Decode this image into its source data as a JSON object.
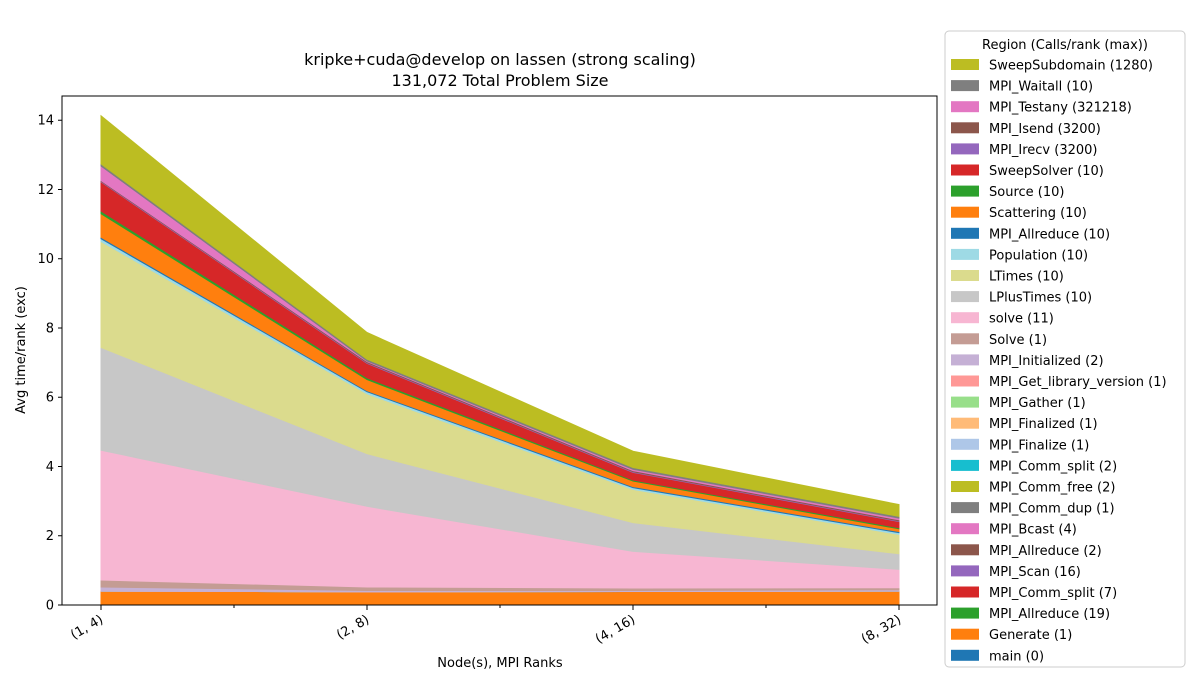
{
  "chart_data": {
    "type": "area",
    "stacked": true,
    "title": "kripke+cuda@develop on lassen (strong scaling)",
    "subtitle": "131,072 Total Problem Size",
    "xlabel": "Node(s), MPI Ranks",
    "ylabel": "Avg time/rank (exc)",
    "categories": [
      "(1, 4)",
      "(2, 8)",
      "(4, 16)",
      "(8, 32)"
    ],
    "ylim": [
      0,
      14.7
    ],
    "yticks": [
      0,
      2,
      4,
      6,
      8,
      10,
      12,
      14
    ],
    "grid": false,
    "legend_position": "outside-right",
    "legend_title": "Region (Calls/rank (max))",
    "series": [
      {
        "name": "main (0)",
        "color": "#1f77b4",
        "values": [
          0.02,
          0.02,
          0.02,
          0.02
        ]
      },
      {
        "name": "Generate (1)",
        "color": "#ff7f0e",
        "values": [
          0.38,
          0.36,
          0.37,
          0.38
        ]
      },
      {
        "name": "MPI_Allreduce (19)",
        "color": "#2ca02c",
        "values": [
          0.0,
          0.0,
          0.0,
          0.0
        ]
      },
      {
        "name": "MPI_Comm_split (7)",
        "color": "#d62728",
        "values": [
          0.0,
          0.0,
          0.0,
          0.0
        ]
      },
      {
        "name": "MPI_Scan (16)",
        "color": "#9467bd",
        "values": [
          0.0,
          0.0,
          0.0,
          0.0
        ]
      },
      {
        "name": "MPI_Allreduce (2)",
        "color": "#8c564b",
        "values": [
          0.0,
          0.0,
          0.0,
          0.0
        ]
      },
      {
        "name": "MPI_Bcast (4)",
        "color": "#e377c2",
        "values": [
          0.0,
          0.0,
          0.0,
          0.0
        ]
      },
      {
        "name": "MPI_Comm_dup (1)",
        "color": "#7f7f7f",
        "values": [
          0.0,
          0.0,
          0.0,
          0.0
        ]
      },
      {
        "name": "MPI_Comm_free (2)",
        "color": "#bcbd22",
        "values": [
          0.0,
          0.0,
          0.0,
          0.0
        ]
      },
      {
        "name": "MPI_Comm_split (2)",
        "color": "#17becf",
        "values": [
          0.0,
          0.0,
          0.0,
          0.0
        ]
      },
      {
        "name": "MPI_Finalize (1)",
        "color": "#aec7e8",
        "values": [
          0.0,
          0.0,
          0.0,
          0.0
        ]
      },
      {
        "name": "MPI_Finalized (1)",
        "color": "#ffbb78",
        "values": [
          0.0,
          0.0,
          0.0,
          0.0
        ]
      },
      {
        "name": "MPI_Gather (1)",
        "color": "#98df8a",
        "values": [
          0.0,
          0.0,
          0.0,
          0.0
        ]
      },
      {
        "name": "MPI_Get_library_version (1)",
        "color": "#ff9896",
        "values": [
          0.0,
          0.0,
          0.0,
          0.0
        ]
      },
      {
        "name": "MPI_Initialized (2)",
        "color": "#c5b0d5",
        "values": [
          0.12,
          0.04,
          0.03,
          0.04
        ]
      },
      {
        "name": "Solve (1)",
        "color": "#c49c94",
        "values": [
          0.2,
          0.1,
          0.07,
          0.06
        ]
      },
      {
        "name": "solve (11)",
        "color": "#f7b6d2",
        "values": [
          3.75,
          2.33,
          1.06,
          0.53
        ]
      },
      {
        "name": "LPlusTimes (10)",
        "color": "#c7c7c7",
        "values": [
          2.97,
          1.52,
          0.83,
          0.45
        ]
      },
      {
        "name": "LTimes (10)",
        "color": "#dbdb8d",
        "values": [
          3.06,
          1.73,
          0.96,
          0.56
        ]
      },
      {
        "name": "Population (10)",
        "color": "#9edae5",
        "values": [
          0.08,
          0.06,
          0.05,
          0.05
        ]
      },
      {
        "name": "MPI_Allreduce (10)",
        "color": "#1f77b4",
        "values": [
          0.04,
          0.03,
          0.03,
          0.03
        ]
      },
      {
        "name": "Scattering (10)",
        "color": "#ff7f0e",
        "values": [
          0.68,
          0.32,
          0.16,
          0.08
        ]
      },
      {
        "name": "Source (10)",
        "color": "#2ca02c",
        "values": [
          0.08,
          0.05,
          0.03,
          0.03
        ]
      },
      {
        "name": "SweepSolver (10)",
        "color": "#d62728",
        "values": [
          0.84,
          0.42,
          0.22,
          0.18
        ]
      },
      {
        "name": "MPI_Irecv (3200)",
        "color": "#9467bd",
        "values": [
          0.02,
          0.02,
          0.02,
          0.02
        ]
      },
      {
        "name": "MPI_Isend (3200)",
        "color": "#8c564b",
        "values": [
          0.02,
          0.03,
          0.03,
          0.03
        ]
      },
      {
        "name": "MPI_Testany (321218)",
        "color": "#e377c2",
        "values": [
          0.42,
          0.02,
          0.04,
          0.05
        ]
      },
      {
        "name": "MPI_Waitall (10)",
        "color": "#7f7f7f",
        "values": [
          0.06,
          0.05,
          0.05,
          0.05
        ]
      },
      {
        "name": "SweepSubdomain (1280)",
        "color": "#bcbd22",
        "values": [
          1.39,
          0.77,
          0.47,
          0.34
        ]
      }
    ]
  }
}
